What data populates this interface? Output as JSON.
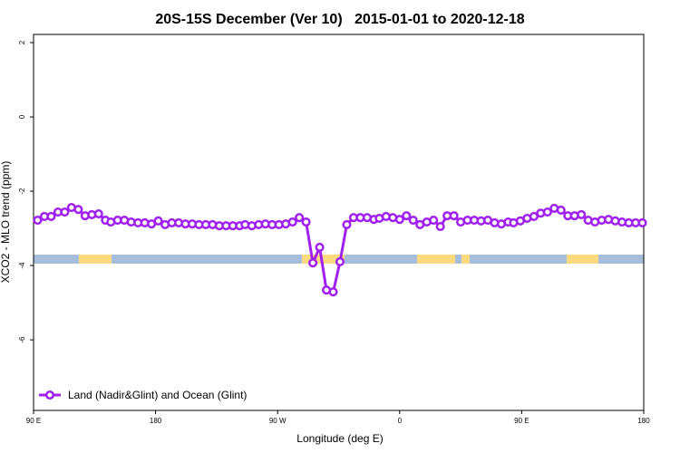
{
  "chart_data": {
    "type": "line",
    "title": "20S-15S December (Ver 10)   2015-01-01 to 2020-12-18",
    "xlabel": "Longitude (deg E)",
    "ylabel": "XCO2 - MLO trend (ppm)",
    "xlim": [
      90,
      540
    ],
    "ylim": [
      -7.9,
      2.22
    ],
    "xticks": [
      {
        "value": 90,
        "label": "90 E"
      },
      180,
      {
        "value": 270,
        "label": "90 W"
      },
      {
        "value": 360,
        "label": "0"
      },
      {
        "value": 450,
        "label": "90 E"
      },
      {
        "value": 540,
        "label": "180"
      }
    ],
    "yticks": [
      -6,
      -4,
      -2,
      0,
      2
    ],
    "legend": "bottom-left",
    "x": [
      93,
      98,
      103,
      108,
      113,
      118,
      123,
      128,
      133,
      138,
      143,
      147,
      152,
      157,
      162,
      167,
      172,
      177,
      182,
      187,
      192,
      197,
      202,
      207,
      212,
      217,
      222,
      227,
      232,
      237,
      242,
      246,
      251,
      256,
      261,
      266,
      271,
      276,
      281,
      286,
      291,
      296,
      301,
      306,
      311,
      316,
      321,
      326,
      331,
      336,
      341,
      345,
      350,
      355,
      360,
      365,
      370,
      375,
      380,
      385,
      390,
      395,
      400,
      405,
      410,
      415,
      420,
      425,
      430,
      435,
      440,
      444,
      449,
      454,
      459,
      464,
      469,
      474,
      479,
      484,
      489,
      494,
      499,
      504,
      509,
      514,
      519,
      524,
      529,
      534,
      539
    ],
    "series": [
      {
        "name": "Land (Nadir&Glint) and Ocean (Glint)",
        "color": "#a020f0",
        "values": [
          -2.78,
          -2.68,
          -2.68,
          -2.56,
          -2.56,
          -2.44,
          -2.49,
          -2.66,
          -2.63,
          -2.61,
          -2.78,
          -2.83,
          -2.78,
          -2.78,
          -2.83,
          -2.85,
          -2.85,
          -2.88,
          -2.8,
          -2.9,
          -2.85,
          -2.85,
          -2.88,
          -2.88,
          -2.9,
          -2.9,
          -2.9,
          -2.93,
          -2.93,
          -2.93,
          -2.93,
          -2.9,
          -2.93,
          -2.9,
          -2.88,
          -2.9,
          -2.9,
          -2.88,
          -2.83,
          -2.71,
          -2.83,
          -3.93,
          -3.51,
          -4.66,
          -4.71,
          -3.9,
          -2.9,
          -2.71,
          -2.71,
          -2.71,
          -2.76,
          -2.73,
          -2.68,
          -2.71,
          -2.76,
          -2.66,
          -2.78,
          -2.9,
          -2.83,
          -2.78,
          -2.95,
          -2.66,
          -2.66,
          -2.83,
          -2.78,
          -2.78,
          -2.8,
          -2.78,
          -2.85,
          -2.88,
          -2.83,
          -2.85,
          -2.8,
          -2.73,
          -2.68,
          -2.59,
          -2.56,
          -2.46,
          -2.51,
          -2.66,
          -2.66,
          -2.63,
          -2.78,
          -2.83,
          -2.78,
          -2.76,
          -2.8,
          -2.83,
          -2.85,
          -2.85,
          -2.85
        ]
      }
    ]
  }
}
